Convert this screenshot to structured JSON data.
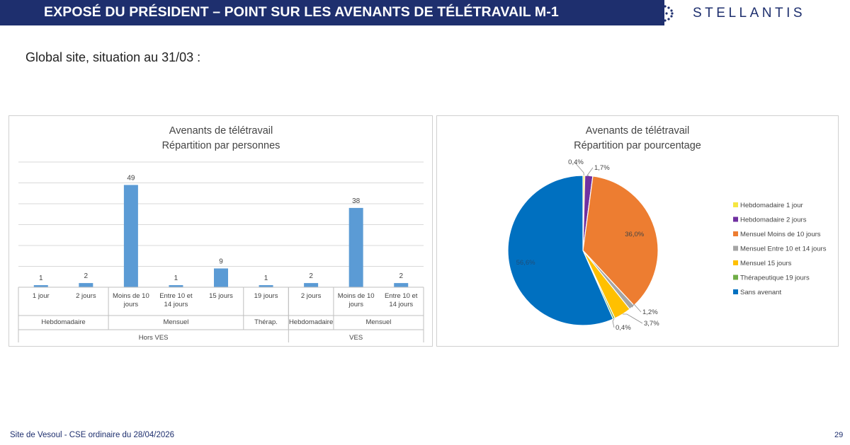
{
  "header": {
    "title": "EXPOSÉ DU PRÉSIDENT – POINT SUR LES AVENANTS DE TÉLÉTRAVAIL M-1",
    "logo_text": "STELLANTIS",
    "bar_color": "#1e2f6e"
  },
  "subtitle": "Global site, situation au 31/03 :",
  "chart_data": [
    {
      "type": "bar",
      "title": "Avenants de télétravail",
      "subtitle": "Répartition par personnes",
      "color": "#5b9bd5",
      "ylim": [
        0,
        60
      ],
      "grid": true,
      "categories": [
        "1 jour",
        "2 jours",
        "Moins de 10 jours",
        "Entre 10 et 14 jours",
        "15 jours",
        "19 jours",
        "2 jours",
        "Moins de 10 jours",
        "Entre 10 et 14 jours"
      ],
      "values": [
        1,
        2,
        49,
        1,
        9,
        1,
        2,
        38,
        2
      ],
      "groups": [
        {
          "label": "Hebdomadaire",
          "span": 2
        },
        {
          "label": "Mensuel",
          "span": 3
        },
        {
          "label": "Thérap.",
          "span": 1
        },
        {
          "label": "Hebdomadaire",
          "span": 1
        },
        {
          "label": "Mensuel",
          "span": 2
        }
      ],
      "supergroups": [
        {
          "label": "Hors VES",
          "span": 6
        },
        {
          "label": "VES",
          "span": 3
        }
      ]
    },
    {
      "type": "pie",
      "title": "Avenants de télétravail",
      "subtitle": "Répartition par pourcentage",
      "legend_position": "right",
      "slices": [
        {
          "label": "Hebdomadaire 1 jour",
          "value": 0.4,
          "display": "0,4%",
          "color": "#f5e642"
        },
        {
          "label": "Hebdomadaire 2 jours",
          "value": 1.7,
          "display": "1,7%",
          "color": "#7030a0"
        },
        {
          "label": "Mensuel Moins de 10 jours",
          "value": 36.0,
          "display": "36,0%",
          "color": "#ed7d31"
        },
        {
          "label": "Mensuel Entre 10 et 14 jours",
          "value": 1.2,
          "display": "1,2%",
          "color": "#a5a5a5"
        },
        {
          "label": "Mensuel 15 jours",
          "value": 3.7,
          "display": "3,7%",
          "color": "#ffc000"
        },
        {
          "label": "Thérapeutique 19 jours",
          "value": 0.4,
          "display": "0,4%",
          "color": "#70ad47"
        },
        {
          "label": "Sans avenant",
          "value": 56.6,
          "display": "56,6%",
          "color": "#0070c0"
        }
      ]
    }
  ],
  "footer": {
    "left": "Site de Vesoul - CSE ordinaire du 28/04/2026",
    "page": "29"
  }
}
